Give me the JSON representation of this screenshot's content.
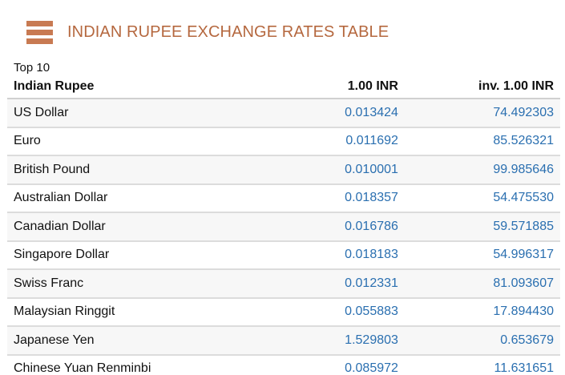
{
  "header": {
    "title": "INDIAN RUPEE EXCHANGE RATES TABLE",
    "accent_color": "#b5683f"
  },
  "table": {
    "subtitle": "Top 10",
    "columns": [
      "Indian Rupee",
      "1.00 INR",
      "inv. 1.00 INR"
    ],
    "rows": [
      {
        "currency": "US Dollar",
        "rate": "0.013424",
        "inverse": "74.492303"
      },
      {
        "currency": "Euro",
        "rate": "0.011692",
        "inverse": "85.526321"
      },
      {
        "currency": "British Pound",
        "rate": "0.010001",
        "inverse": "99.985646"
      },
      {
        "currency": "Australian Dollar",
        "rate": "0.018357",
        "inverse": "54.475530"
      },
      {
        "currency": "Canadian Dollar",
        "rate": "0.016786",
        "inverse": "59.571885"
      },
      {
        "currency": "Singapore Dollar",
        "rate": "0.018183",
        "inverse": "54.996317"
      },
      {
        "currency": "Swiss Franc",
        "rate": "0.012331",
        "inverse": "81.093607"
      },
      {
        "currency": "Malaysian Ringgit",
        "rate": "0.055883",
        "inverse": "17.894430"
      },
      {
        "currency": "Japanese Yen",
        "rate": "1.529803",
        "inverse": "0.653679"
      },
      {
        "currency": "Chinese Yuan Renminbi",
        "rate": "0.085972",
        "inverse": "11.631651"
      }
    ]
  }
}
